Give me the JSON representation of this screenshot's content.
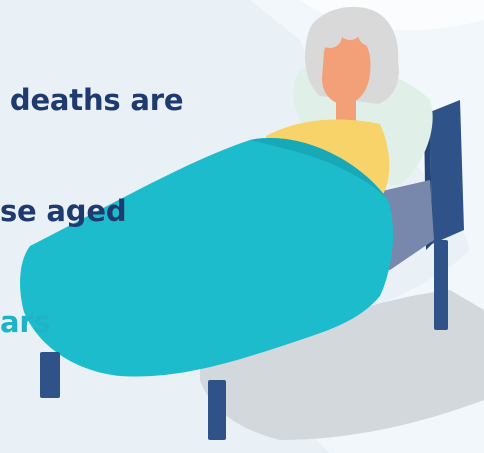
{
  "headline": {
    "line1": " deaths are",
    "line2": "se aged",
    "line3": "ars"
  },
  "colors": {
    "background": "#eaf1f6",
    "headline_text": "#1e3a6e",
    "headline_accent": "#1fb3c8",
    "blanket": "#1cbccc",
    "bed_frame": "#2f5288",
    "mattress": "#7888ad",
    "pillow": "#e0efe8",
    "skin": "#f3a078",
    "hair": "#d9d9d9",
    "shirt": "#f7d36a"
  },
  "illustration": {
    "icon": "elderly-person-in-bed-icon"
  }
}
